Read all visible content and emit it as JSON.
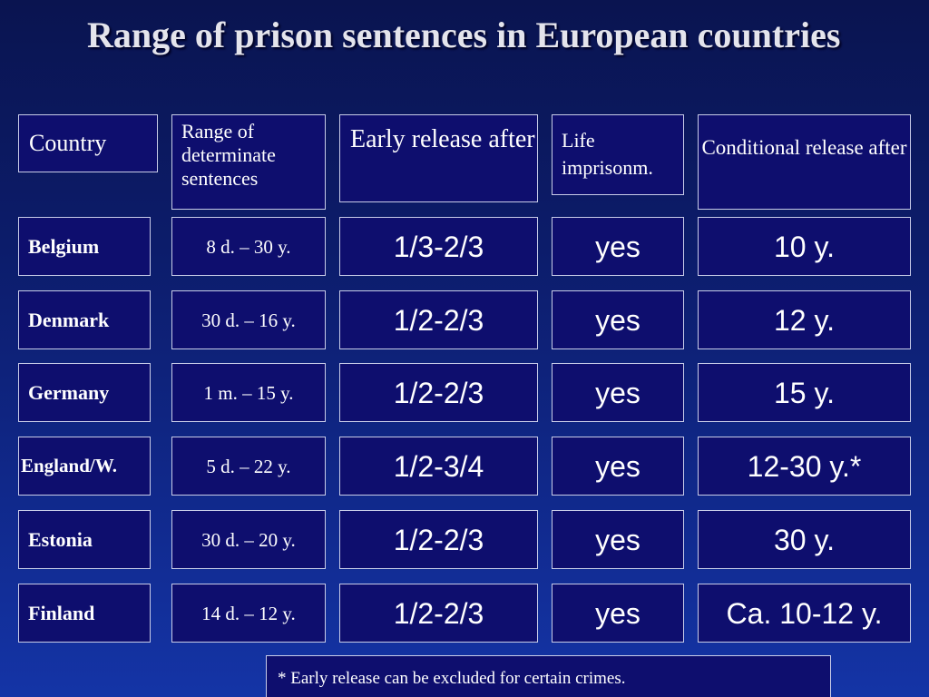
{
  "title": "Range of prison sentences in European countries",
  "headers": {
    "country": "Country",
    "range": "Range of determinate sentences",
    "early": "Early release after",
    "life": "Life imprisonm.",
    "conditional": "Conditional release after"
  },
  "rows": [
    {
      "country": "Belgium",
      "range": "8 d. – 30 y.",
      "early": "1/3-2/3",
      "life": "yes",
      "conditional": "10 y."
    },
    {
      "country": "Denmark",
      "range": "30 d. – 16 y.",
      "early": "1/2-2/3",
      "life": "yes",
      "conditional": "12 y."
    },
    {
      "country": "Germany",
      "range": "1 m. – 15 y.",
      "early": "1/2-2/3",
      "life": "yes",
      "conditional": "15 y."
    },
    {
      "country": "England/W.",
      "range": "5 d. – 22 y.",
      "early": "1/2-3/4",
      "life": "yes",
      "conditional": "12-30 y.*"
    },
    {
      "country": "Estonia",
      "range": "30 d. – 20 y.",
      "early": "1/2-2/3",
      "life": "yes",
      "conditional": "30 y."
    },
    {
      "country": "Finland",
      "range": "14 d. – 12 y.",
      "early": "1/2-2/3",
      "life": "yes",
      "conditional": "Ca. 10-12 y."
    }
  ],
  "footnote": "* Early release can be excluded for certain crimes."
}
